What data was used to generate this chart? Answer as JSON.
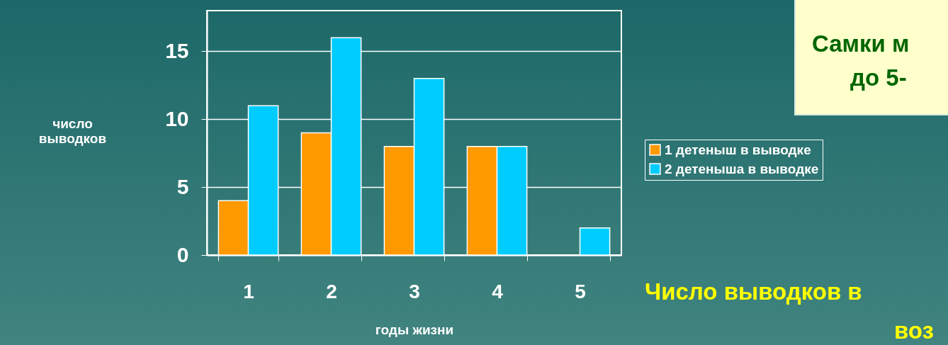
{
  "chart_data": {
    "type": "bar",
    "categories": [
      "1",
      "2",
      "3",
      "4",
      "5"
    ],
    "series": [
      {
        "name": "1 детеныш в выводке",
        "color": "#ff9900",
        "values": [
          4,
          9,
          8,
          8,
          null
        ]
      },
      {
        "name": "2 детеныша в выводке",
        "color": "#00ccff",
        "values": [
          11,
          16,
          13,
          8,
          2
        ]
      }
    ],
    "ylim": [
      0,
      18
    ],
    "yticks": [
      0,
      5,
      10,
      15
    ],
    "grid": "y",
    "legend": "right",
    "xlabel": "годы жизни",
    "ylabel": "число выводков",
    "annotations": [
      "Самки м",
      "до 5-",
      "Число выводков в",
      "воз"
    ]
  }
}
